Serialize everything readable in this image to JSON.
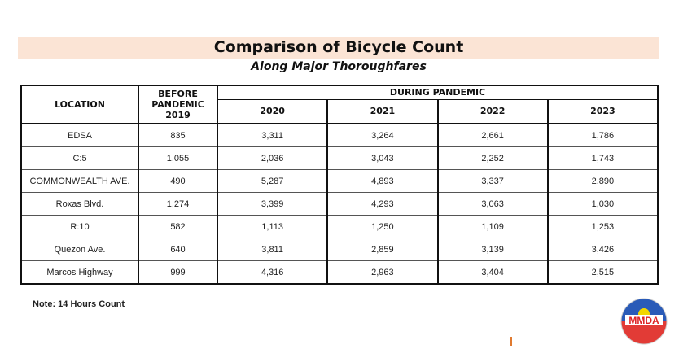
{
  "title": "Comparison of Bicycle Count",
  "subtitle": "Along Major Thoroughfares",
  "table": {
    "headers": {
      "location": "LOCATION",
      "before": "BEFORE PANDEMIC 2019",
      "during": "DURING PANDEMIC",
      "years": [
        "2020",
        "2021",
        "2022",
        "2023"
      ]
    },
    "rows": [
      {
        "location": "EDSA",
        "values": [
          "835",
          "3,311",
          "3,264",
          "2,661",
          "1,786"
        ]
      },
      {
        "location": "C:5",
        "values": [
          "1,055",
          "2,036",
          "3,043",
          "2,252",
          "1,743"
        ]
      },
      {
        "location": "COMMONWEALTH AVE.",
        "values": [
          "490",
          "5,287",
          "4,893",
          "3,337",
          "2,890"
        ]
      },
      {
        "location": "Roxas Blvd.",
        "values": [
          "1,274",
          "3,399",
          "4,293",
          "3,063",
          "1,030"
        ]
      },
      {
        "location": "R:10",
        "values": [
          "582",
          "1,113",
          "1,250",
          "1,109",
          "1,253"
        ]
      },
      {
        "location": "Quezon Ave.",
        "values": [
          "640",
          "3,811",
          "2,859",
          "3,139",
          "3,426"
        ]
      },
      {
        "location": "Marcos Highway",
        "values": [
          "999",
          "4,316",
          "2,963",
          "3,404",
          "2,515"
        ]
      }
    ]
  },
  "note": "Note: 14 Hours Count",
  "logo": {
    "text": "MMDA"
  },
  "colors": {
    "title_band": "#fbe4d5",
    "logo_blue": "#2a5bb8",
    "logo_red": "#e23b36",
    "logo_sun": "#f2d600"
  }
}
